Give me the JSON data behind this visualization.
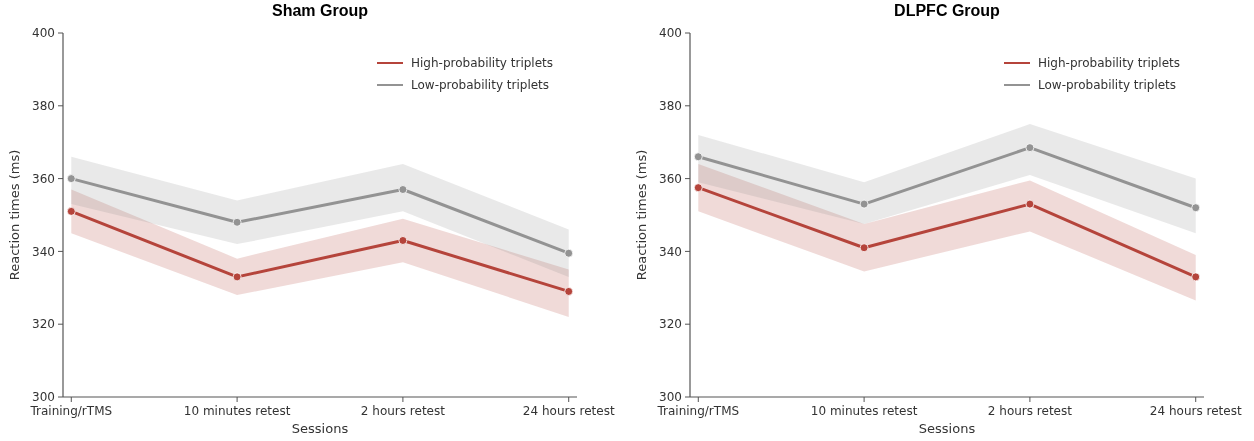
{
  "chart_data": [
    {
      "type": "line",
      "title": "Sham Group",
      "xlabel": "Sessions",
      "ylabel": "Reaction times (ms)",
      "categories": [
        "Training/rTMS",
        "10 minutes retest",
        "2 hours retest",
        "24 hours retest"
      ],
      "ylim": [
        300,
        400
      ],
      "yticks": [
        300,
        320,
        340,
        360,
        380,
        400
      ],
      "grid": false,
      "legend": "top right",
      "marker": "circle",
      "line_style": "solid",
      "series": [
        {
          "name": "High-probability triplets",
          "color": "#b5443b",
          "values": [
            351,
            333,
            343,
            329
          ],
          "lower": [
            345,
            328,
            337,
            322
          ],
          "upper": [
            357,
            338,
            349,
            335
          ]
        },
        {
          "name": "Low-probability triplets",
          "color": "#939393",
          "values": [
            360,
            348,
            357,
            339.5
          ],
          "lower": [
            353,
            342,
            351,
            333
          ],
          "upper": [
            366,
            354,
            364,
            346
          ]
        }
      ]
    },
    {
      "type": "line",
      "title": "DLPFC Group",
      "xlabel": "Sessions",
      "ylabel": "Reaction times (ms)",
      "categories": [
        "Training/rTMS",
        "10 minutes retest",
        "2 hours retest",
        "24 hours retest"
      ],
      "ylim": [
        300,
        400
      ],
      "yticks": [
        300,
        320,
        340,
        360,
        380,
        400
      ],
      "grid": false,
      "legend": "top right",
      "marker": "circle",
      "line_style": "solid",
      "series": [
        {
          "name": "High-probability triplets",
          "color": "#b5443b",
          "values": [
            357.5,
            341,
            353,
            333
          ],
          "lower": [
            351,
            334.5,
            345.5,
            326.5
          ],
          "upper": [
            364,
            347.5,
            359.5,
            339
          ]
        },
        {
          "name": "Low-probability triplets",
          "color": "#939393",
          "values": [
            366,
            353,
            368.5,
            352
          ],
          "lower": [
            359,
            347.5,
            361,
            345
          ],
          "upper": [
            372,
            359,
            375,
            360
          ]
        }
      ]
    }
  ]
}
